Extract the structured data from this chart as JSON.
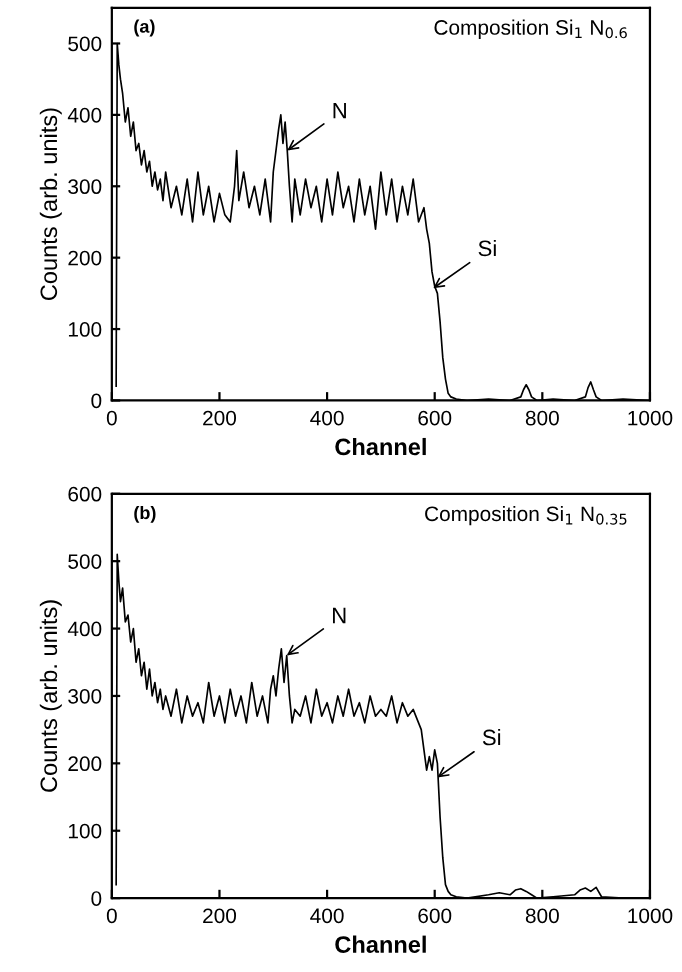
{
  "chart_data": [
    {
      "type": "line",
      "xlabel": "Channel",
      "ylabel": "Counts (arb. units)",
      "xlim": [
        0,
        1000
      ],
      "ylim": [
        0,
        550
      ],
      "xticks": [
        0,
        200,
        400,
        600,
        800,
        1000
      ],
      "yticks": [
        0,
        100,
        200,
        300,
        400,
        500
      ],
      "grid": false,
      "legend": false,
      "marker": "none",
      "line_style": "solid",
      "annotations": [
        "(a)",
        "Composition Si$_{1}$ N$_{0.6}$",
        {
          "text": "N",
          "x": 326,
          "y": 350
        },
        {
          "text": "Si",
          "x": 597,
          "y": 157
        }
      ],
      "series": [
        {
          "color": "#000000",
          "x": [
            8,
            10,
            13,
            16,
            20,
            25,
            30,
            35,
            40,
            45,
            50,
            55,
            60,
            65,
            70,
            75,
            80,
            85,
            90,
            95,
            100,
            110,
            120,
            130,
            140,
            150,
            160,
            170,
            180,
            190,
            200,
            210,
            220,
            228,
            232,
            236,
            245,
            255,
            265,
            275,
            285,
            295,
            300,
            305,
            310,
            314,
            318,
            322,
            326,
            330,
            335,
            340,
            350,
            360,
            370,
            380,
            390,
            400,
            410,
            420,
            430,
            440,
            450,
            460,
            470,
            480,
            490,
            500,
            510,
            520,
            530,
            540,
            550,
            560,
            570,
            580,
            585,
            590,
            595,
            600,
            605,
            610,
            615,
            620,
            625,
            630,
            640,
            660,
            700,
            740,
            760,
            765,
            770,
            775,
            780,
            790,
            820,
            860,
            880,
            885,
            890,
            895,
            900,
            910,
            950,
            1000
          ],
          "values": [
            20,
            500,
            470,
            450,
            430,
            390,
            410,
            370,
            390,
            350,
            360,
            330,
            350,
            320,
            335,
            300,
            320,
            295,
            310,
            280,
            320,
            270,
            300,
            260,
            310,
            250,
            320,
            260,
            300,
            250,
            290,
            260,
            250,
            300,
            350,
            280,
            320,
            270,
            300,
            260,
            310,
            250,
            320,
            350,
            380,
            400,
            360,
            390,
            350,
            300,
            250,
            310,
            260,
            310,
            270,
            300,
            250,
            310,
            260,
            320,
            270,
            300,
            250,
            310,
            260,
            300,
            240,
            320,
            260,
            310,
            250,
            300,
            260,
            310,
            250,
            270,
            240,
            220,
            180,
            160,
            150,
            110,
            60,
            30,
            10,
            5,
            2,
            0,
            2,
            0,
            5,
            15,
            22,
            15,
            5,
            0,
            2,
            0,
            5,
            18,
            26,
            15,
            5,
            0,
            2,
            0
          ]
        }
      ]
    },
    {
      "type": "line",
      "xlabel": "Channel",
      "ylabel": "Counts (arb. units)",
      "xlim": [
        0,
        1000
      ],
      "ylim": [
        0,
        600
      ],
      "xticks": [
        0,
        200,
        400,
        600,
        800,
        1000
      ],
      "yticks": [
        0,
        100,
        200,
        300,
        400,
        500,
        600
      ],
      "grid": false,
      "legend": false,
      "marker": "none",
      "line_style": "solid",
      "annotations": [
        "(b)",
        "Composition Si$_{1}$ N$_{0.35}$",
        {
          "text": "N",
          "x": 325,
          "y": 360
        },
        {
          "text": "Si",
          "x": 605,
          "y": 179
        }
      ],
      "series": [
        {
          "color": "#000000",
          "x": [
            8,
            10,
            13,
            16,
            20,
            25,
            30,
            35,
            40,
            45,
            50,
            55,
            60,
            65,
            70,
            75,
            80,
            85,
            90,
            95,
            100,
            110,
            120,
            130,
            140,
            150,
            160,
            170,
            180,
            190,
            200,
            210,
            220,
            230,
            240,
            250,
            260,
            270,
            280,
            290,
            295,
            300,
            305,
            310,
            315,
            320,
            325,
            330,
            335,
            340,
            350,
            360,
            370,
            380,
            390,
            400,
            410,
            420,
            430,
            440,
            450,
            460,
            470,
            480,
            490,
            500,
            510,
            520,
            530,
            540,
            550,
            560,
            570,
            575,
            580,
            585,
            590,
            595,
            600,
            605,
            610,
            615,
            620,
            625,
            630,
            640,
            660,
            700,
            720,
            740,
            750,
            760,
            770,
            780,
            790,
            820,
            860,
            870,
            880,
            890,
            900,
            910,
            950,
            1000
          ],
          "values": [
            20,
            510,
            470,
            440,
            460,
            410,
            420,
            380,
            400,
            350,
            370,
            330,
            350,
            310,
            340,
            300,
            320,
            290,
            310,
            280,
            300,
            270,
            310,
            260,
            300,
            270,
            290,
            260,
            320,
            270,
            300,
            260,
            310,
            270,
            300,
            260,
            320,
            270,
            300,
            260,
            310,
            330,
            300,
            340,
            370,
            320,
            360,
            300,
            260,
            280,
            270,
            300,
            260,
            310,
            270,
            290,
            260,
            300,
            270,
            310,
            270,
            290,
            260,
            300,
            270,
            280,
            270,
            300,
            260,
            290,
            270,
            280,
            260,
            250,
            220,
            190,
            210,
            190,
            220,
            200,
            120,
            60,
            20,
            10,
            5,
            2,
            0,
            5,
            8,
            5,
            12,
            14,
            10,
            5,
            0,
            2,
            5,
            12,
            15,
            10,
            16,
            2,
            0,
            0
          ]
        }
      ]
    }
  ]
}
